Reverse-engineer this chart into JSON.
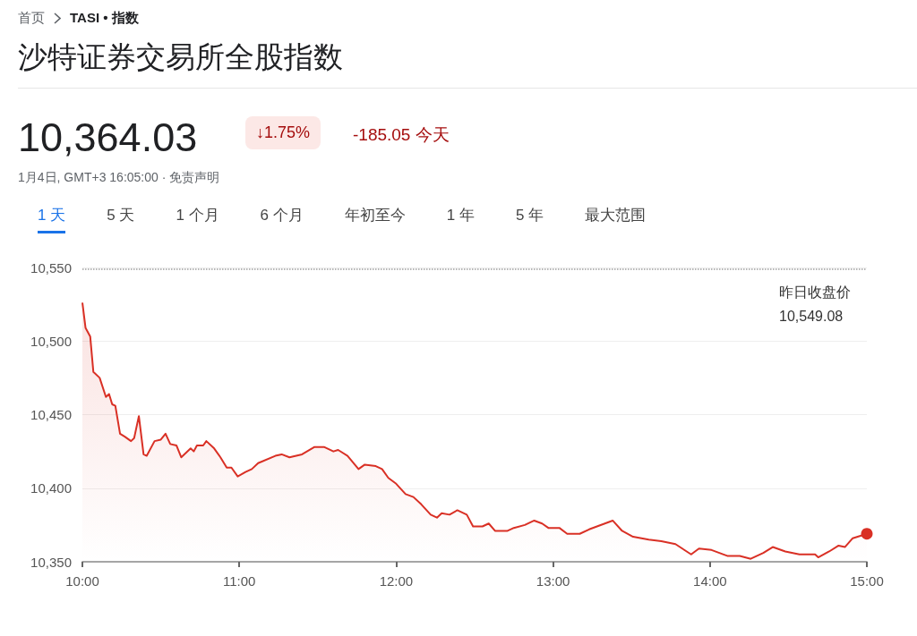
{
  "chart_data": {
    "type": "area",
    "title": "沙特证券交易所全股指数",
    "annotations": [
      "首页",
      "TASI • 指数",
      "10,364.03",
      "↓1.75%",
      "-185.05 今天",
      "1月4日, GMT+3 16:05:00 · 免责声明",
      "1 天",
      "5 天",
      "1 个月",
      "6 个月",
      "年初至今",
      "1 年",
      "5 年",
      "最大范围"
    ],
    "x": [
      10.0,
      10.02,
      10.05,
      10.07,
      10.11,
      10.15,
      10.17,
      10.19,
      10.21,
      10.24,
      10.27,
      10.31,
      10.33,
      10.36,
      10.39,
      10.41,
      10.46,
      10.5,
      10.53,
      10.56,
      10.6,
      10.63,
      10.69,
      10.71,
      10.73,
      10.77,
      10.79,
      10.84,
      10.88,
      10.92,
      10.95,
      10.99,
      11.04,
      11.08,
      11.12,
      11.23,
      11.27,
      11.32,
      11.4,
      11.48,
      11.54,
      11.6,
      11.63,
      11.69,
      11.76,
      11.8,
      11.87,
      11.91,
      11.95,
      12.0,
      12.06,
      12.11,
      12.16,
      12.22,
      12.26,
      12.29,
      12.34,
      12.39,
      12.45,
      12.49,
      12.55,
      12.59,
      12.63,
      12.71,
      12.75,
      12.82,
      12.88,
      12.93,
      12.97,
      13.04,
      13.09,
      13.17,
      13.23,
      13.28,
      13.38,
      13.44,
      13.51,
      13.61,
      13.69,
      13.78,
      13.88,
      13.93,
      14.01,
      14.11,
      14.19,
      14.26,
      14.34,
      14.4,
      14.48,
      14.57,
      14.67,
      14.69,
      14.76,
      14.82,
      14.86,
      14.91,
      15.0
    ],
    "series": [
      {
        "color": "#d93025",
        "values": [
          10526,
          10509,
          10503,
          10479,
          10475,
          10462,
          10464,
          10457,
          10456,
          10437,
          10435,
          10432,
          10434,
          10449,
          10423,
          10422,
          10432,
          10433,
          10437,
          10430,
          10429,
          10421,
          10427,
          10425,
          10429,
          10429,
          10432,
          10427,
          10421,
          10414,
          10414,
          10408,
          10411,
          10413,
          10417,
          10422,
          10423,
          10421,
          10423,
          10428,
          10428,
          10425,
          10426,
          10422,
          10413,
          10416,
          10415,
          10413,
          10407,
          10403,
          10396,
          10394,
          10389,
          10382,
          10380,
          10383,
          10382,
          10385,
          10382,
          10374,
          10374,
          10376,
          10371,
          10371,
          10373,
          10375,
          10378,
          10376,
          10373,
          10373,
          10369,
          10369,
          10372,
          10374,
          10378,
          10371,
          10367,
          10365,
          10364,
          10362,
          10355,
          10359,
          10358,
          10354,
          10354,
          10352,
          10356,
          10360,
          10357,
          10355,
          10355,
          10353,
          10357,
          10361,
          10360,
          10366,
          10369
        ]
      }
    ],
    "xlim": [
      10,
      15
    ],
    "xticks": [
      {
        "value": 10,
        "label": "10:00"
      },
      {
        "value": 11,
        "label": "11:00"
      },
      {
        "value": 12,
        "label": "12:00"
      },
      {
        "value": 13,
        "label": "13:00"
      },
      {
        "value": 14,
        "label": "14:00"
      },
      {
        "value": 15,
        "label": "15:00"
      }
    ],
    "ylim": [
      10350,
      10550
    ],
    "yticks": [
      {
        "value": 10350,
        "label": "10,350"
      },
      {
        "value": 10400,
        "label": "10,400"
      },
      {
        "value": 10450,
        "label": "10,450"
      },
      {
        "value": 10500,
        "label": "10,500"
      },
      {
        "value": 10550,
        "label": "10,550"
      }
    ],
    "grid": "y",
    "ref_lines": [
      {
        "axis": "y",
        "value": 10549.08,
        "label": "昨日收盘价 10,549.08",
        "line_style": "dotted",
        "color": "#9e9e9e"
      }
    ]
  }
}
